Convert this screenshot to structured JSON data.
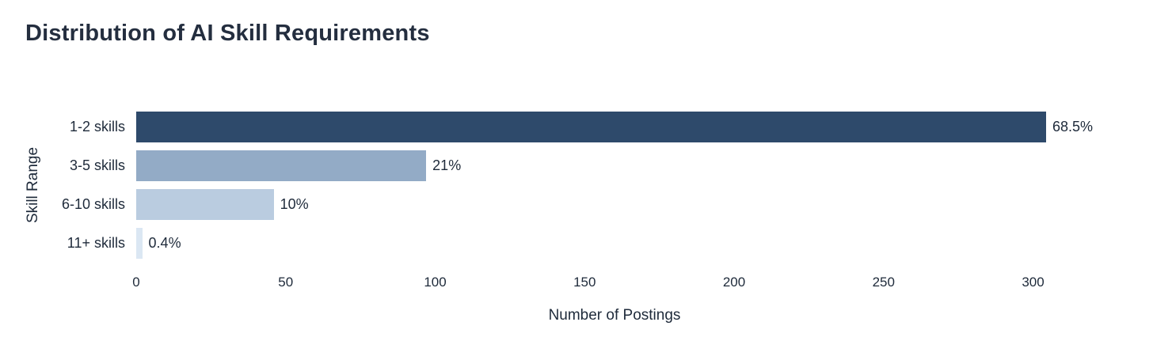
{
  "title": "Distribution of AI Skill Requirements",
  "colors": {
    "background": "#ffffff",
    "title_text": "#242e3f",
    "axis_text": "#1e2a3a"
  },
  "chart_data": {
    "type": "bar",
    "orientation": "horizontal",
    "title": "Distribution of AI Skill Requirements",
    "categories": [
      "1-2 skills",
      "3-5 skills",
      "6-10 skills",
      "11+ skills"
    ],
    "values": [
      316,
      97,
      46,
      2
    ],
    "value_labels": [
      "68.5%",
      "21%",
      "10%",
      "0.4%"
    ],
    "bar_colors": [
      "#2e4a6b",
      "#93abc6",
      "#bacce0",
      "#dbe7f3"
    ],
    "xlabel": "Number of Postings",
    "ylabel": "Skill Range",
    "xlim": [
      0,
      320
    ],
    "xticks": [
      0,
      50,
      100,
      150,
      200,
      250,
      300
    ],
    "grid": false,
    "legend": false
  }
}
